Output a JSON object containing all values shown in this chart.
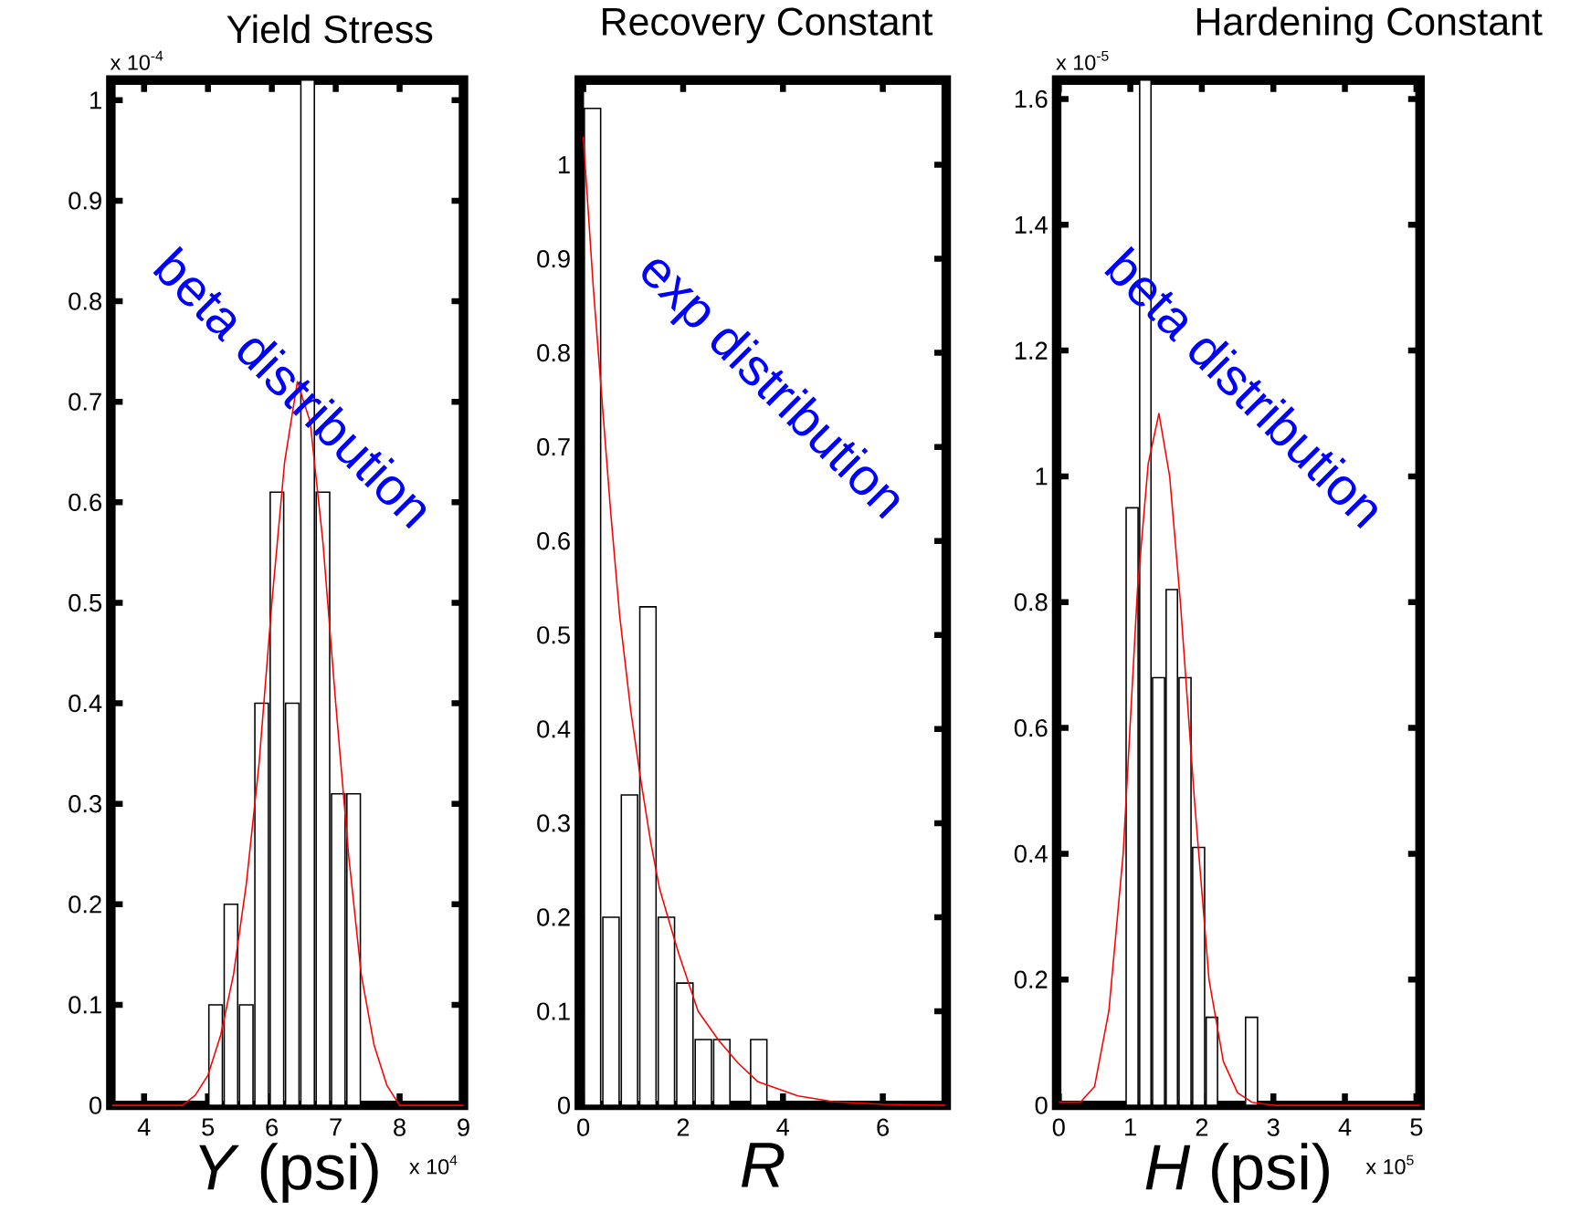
{
  "chart_data": [
    {
      "type": "histogram",
      "title": "Yield Stress",
      "xlabel": "*Y* (psi)",
      "ylabel": "x 10$^{-4}$",
      "xlim": [
        3.48,
        9
      ],
      "ylim": [
        0,
        1.02
      ],
      "xticks": [
        4,
        5,
        6,
        7,
        8,
        9
      ],
      "yticks": [
        0,
        0.1,
        0.2,
        0.3,
        0.4,
        0.5,
        0.6,
        0.7,
        0.8,
        0.9,
        1
      ],
      "annotations": [
        "beta distribution",
        "x 10$^{4}$"
      ],
      "series": [
        {
          "type": "histogram",
          "color": "#ffffff",
          "bins": [
            5.0,
            5.24,
            5.48,
            5.72,
            5.96,
            6.2,
            6.44,
            6.68,
            6.92,
            7.16,
            7.4
          ],
          "values": [
            0.1,
            0.2,
            0.1,
            0.4,
            0.61,
            0.4,
            1.02,
            0.61,
            0.31,
            0.31
          ]
        },
        {
          "type": "line",
          "color": "#ff0000",
          "x": [
            3.5,
            4.6,
            4.8,
            5.0,
            5.2,
            5.4,
            5.6,
            5.8,
            6.0,
            6.2,
            6.4,
            6.6,
            6.8,
            7.0,
            7.2,
            7.4,
            7.6,
            7.8,
            8.0,
            9.0
          ],
          "values": [
            0,
            0,
            0.01,
            0.03,
            0.07,
            0.13,
            0.22,
            0.34,
            0.5,
            0.64,
            0.72,
            0.68,
            0.56,
            0.4,
            0.25,
            0.13,
            0.06,
            0.02,
            0,
            0
          ]
        }
      ]
    },
    {
      "type": "histogram",
      "title": "Recovery Constant",
      "xlabel": "*R*",
      "xlim": [
        -0.08,
        7.27
      ],
      "ylim": [
        0,
        1.09
      ],
      "xticks": [
        0,
        2,
        4,
        6
      ],
      "yticks": [
        0,
        0.1,
        0.2,
        0.3,
        0.4,
        0.5,
        0.6,
        0.7,
        0.8,
        0.9,
        1
      ],
      "annotations": [
        "exp distribution"
      ],
      "series": [
        {
          "type": "histogram",
          "color": "#ffffff",
          "bins": [
            0,
            0.37,
            0.74,
            1.11,
            1.48,
            1.85,
            2.22,
            2.59,
            2.96,
            3.33,
            3.7
          ],
          "values": [
            1.06,
            0.2,
            0.33,
            0.53,
            0.2,
            0.13,
            0.07,
            0.07,
            0,
            0.07
          ]
        },
        {
          "type": "line",
          "color": "#ff0000",
          "x": [
            0,
            0.2,
            0.36,
            0.55,
            0.73,
            0.95,
            1.14,
            1.35,
            1.53,
            1.75,
            1.92,
            2.3,
            2.7,
            3.1,
            3.5,
            4.3,
            5.0,
            6.0,
            7.25
          ],
          "values": [
            1.03,
            0.87,
            0.76,
            0.63,
            0.52,
            0.42,
            0.35,
            0.28,
            0.23,
            0.19,
            0.16,
            0.1,
            0.07,
            0.045,
            0.025,
            0.01,
            0.004,
            0.001,
            0
          ]
        }
      ]
    },
    {
      "type": "histogram",
      "title": "Hardening Constant",
      "xlabel": "*H* (psi)",
      "ylabel": "x 10$^{-5}$",
      "xlim": [
        -0.03,
        5.05
      ],
      "ylim": [
        0,
        1.63
      ],
      "xticks": [
        0,
        1,
        2,
        3,
        4,
        5
      ],
      "yticks": [
        0,
        0.2,
        0.4,
        0.6,
        0.8,
        1,
        1.2,
        1.4,
        1.6
      ],
      "annotations": [
        "beta distribution",
        "x 10$^{5}$"
      ],
      "series": [
        {
          "type": "histogram",
          "color": "#ffffff",
          "bins": [
            0.93,
            1.12,
            1.3,
            1.49,
            1.67,
            1.86,
            2.05,
            2.23,
            2.6,
            2.79
          ],
          "values": [
            0.95,
            1.63,
            0.68,
            0.82,
            0.68,
            0.41,
            0.14,
            0,
            0.14
          ]
        },
        {
          "type": "line",
          "color": "#ff0000",
          "x": [
            0,
            0.3,
            0.5,
            0.7,
            0.9,
            1.1,
            1.25,
            1.4,
            1.55,
            1.7,
            1.9,
            2.1,
            2.3,
            2.5,
            2.7,
            3.0,
            5.05
          ],
          "values": [
            0.005,
            0.005,
            0.03,
            0.15,
            0.4,
            0.82,
            1.02,
            1.1,
            1.0,
            0.8,
            0.48,
            0.2,
            0.07,
            0.02,
            0.005,
            0,
            0
          ]
        }
      ]
    }
  ]
}
